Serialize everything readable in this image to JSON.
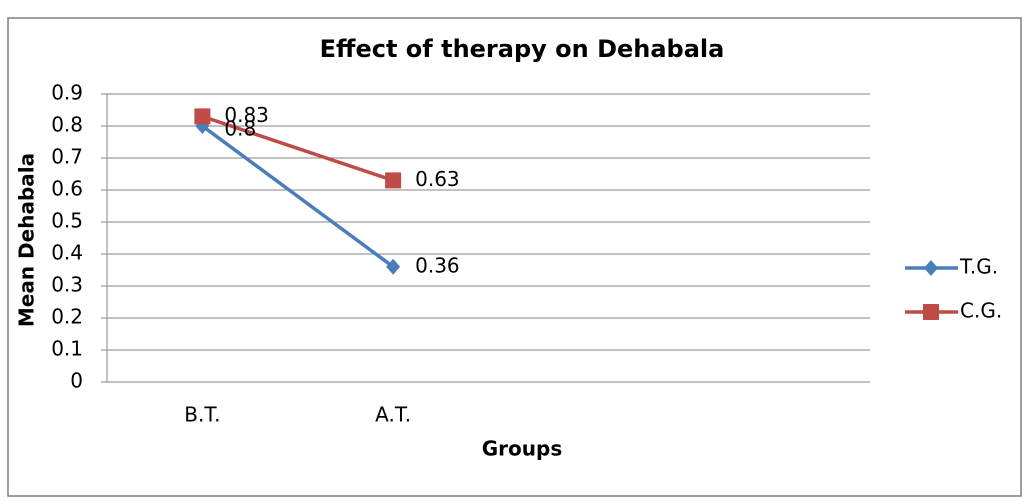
{
  "chart_data": {
    "type": "line",
    "title": "Effect of therapy on Dehabala",
    "xlabel": "Groups",
    "ylabel": "Mean Dehabala",
    "categories": [
      "B.T.",
      "A.T.",
      null,
      null
    ],
    "series": [
      {
        "name": "T.G.",
        "color": "#4a7ebb",
        "marker": "diamond",
        "values": [
          0.8,
          0.36,
          null,
          null
        ]
      },
      {
        "name": "C.G.",
        "color": "#be4b48",
        "marker": "square",
        "values": [
          0.83,
          0.63,
          null,
          null
        ]
      }
    ],
    "ylim": [
      0,
      0.9
    ],
    "yticks": [
      0,
      0.1,
      0.2,
      0.3,
      0.4,
      0.5,
      0.6,
      0.7,
      0.8,
      0.9
    ],
    "grid": true,
    "legend": "right",
    "data_labels": true
  }
}
